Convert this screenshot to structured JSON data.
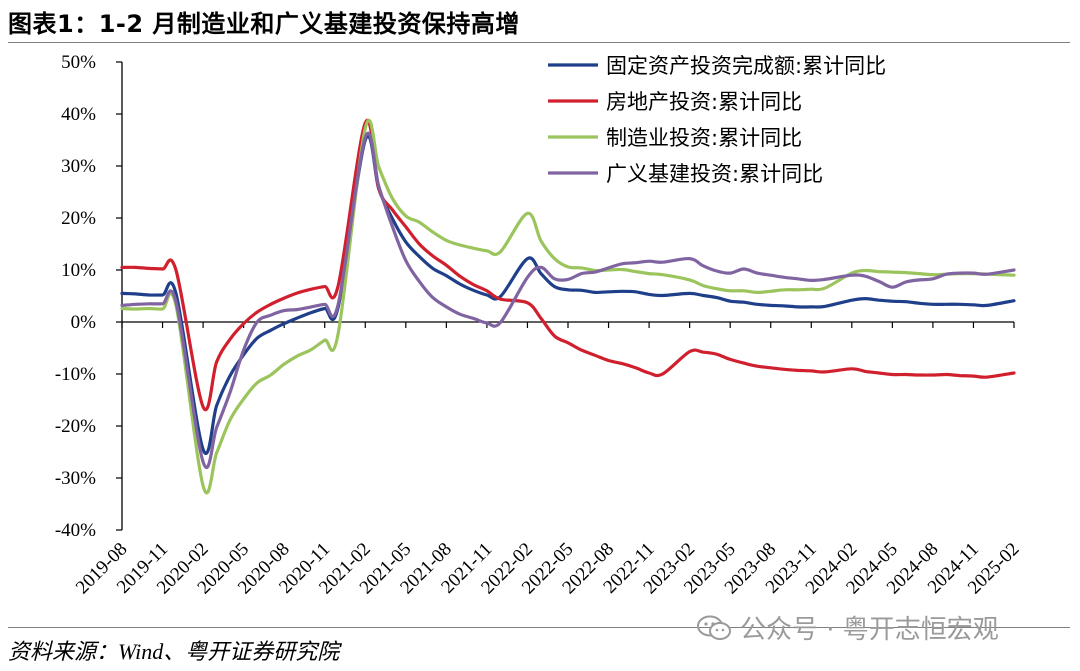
{
  "header": {
    "title": "图表1：1-2 月制造业和广义基建投资保持高增"
  },
  "footer": {
    "source": "资料来源：Wind、粤开证券研究院",
    "watermark": "公众号 · 粤开志恒宏观"
  },
  "colors": {
    "fixed": "#1f3f8a",
    "realestate": "#d0202e",
    "manufacturing": "#9bc45c",
    "infra": "#8064a2"
  },
  "icons": {
    "watermark": "wechat-icon"
  },
  "chart_data": {
    "type": "line",
    "title": "图表1：1-2 月制造业和广义基建投资保持高增",
    "ylim": [
      -40,
      50
    ],
    "yticks": [
      -40,
      -30,
      -20,
      -10,
      0,
      10,
      20,
      30,
      40,
      50
    ],
    "ytick_labels": [
      "-40%",
      "-30%",
      "-20%",
      "-10%",
      "0%",
      "10%",
      "20%",
      "30%",
      "40%",
      "50%"
    ],
    "x_start": "2019-08",
    "x_end": "2025-02",
    "xtick_labels": [
      "2019-08",
      "2019-11",
      "2020-02",
      "2020-05",
      "2020-08",
      "2020-11",
      "2021-02",
      "2021-05",
      "2021-08",
      "2021-11",
      "2022-02",
      "2022-05",
      "2022-08",
      "2022-11",
      "2023-02",
      "2023-05",
      "2023-08",
      "2023-11",
      "2024-02",
      "2024-05",
      "2024-08",
      "2024-11",
      "2025-02"
    ],
    "legend_position": "top-right",
    "grid": false,
    "series": [
      {
        "name": "固定资产投资完成额:累计同比",
        "color": "#1f3f8a",
        "x": [
          "2019-08",
          "2019-09",
          "2019-10",
          "2019-11",
          "2019-12",
          "2020-02",
          "2020-03",
          "2020-04",
          "2020-05",
          "2020-06",
          "2020-07",
          "2020-08",
          "2020-09",
          "2020-10",
          "2020-11",
          "2020-12",
          "2021-02",
          "2021-03",
          "2021-04",
          "2021-05",
          "2021-06",
          "2021-07",
          "2021-08",
          "2021-09",
          "2021-10",
          "2021-11",
          "2021-12",
          "2022-02",
          "2022-03",
          "2022-04",
          "2022-05",
          "2022-06",
          "2022-07",
          "2022-08",
          "2022-09",
          "2022-10",
          "2022-11",
          "2022-12",
          "2023-02",
          "2023-03",
          "2023-04",
          "2023-05",
          "2023-06",
          "2023-07",
          "2023-08",
          "2023-09",
          "2023-10",
          "2023-11",
          "2023-12",
          "2024-02",
          "2024-03",
          "2024-04",
          "2024-05",
          "2024-06",
          "2024-07",
          "2024-08",
          "2024-09",
          "2024-10",
          "2024-11",
          "2024-12",
          "2025-02"
        ],
        "y": [
          5.5,
          5.4,
          5.2,
          5.2,
          5.4,
          -24.5,
          -16.1,
          -10.3,
          -6.3,
          -3.1,
          -1.6,
          -0.3,
          0.8,
          1.8,
          2.6,
          2.9,
          35.0,
          25.6,
          19.9,
          15.4,
          12.6,
          10.3,
          8.9,
          7.3,
          6.1,
          5.2,
          4.9,
          12.2,
          9.3,
          6.8,
          6.2,
          6.1,
          5.7,
          5.8,
          5.9,
          5.8,
          5.3,
          5.1,
          5.5,
          5.1,
          4.7,
          4.0,
          3.8,
          3.4,
          3.2,
          3.1,
          2.9,
          2.9,
          3.0,
          4.2,
          4.5,
          4.2,
          4.0,
          3.9,
          3.6,
          3.4,
          3.4,
          3.4,
          3.3,
          3.2,
          4.1
        ]
      },
      {
        "name": "房地产投资:累计同比",
        "color": "#d0202e",
        "x": [
          "2019-08",
          "2019-09",
          "2019-10",
          "2019-11",
          "2019-12",
          "2020-02",
          "2020-03",
          "2020-04",
          "2020-05",
          "2020-06",
          "2020-07",
          "2020-08",
          "2020-09",
          "2020-10",
          "2020-11",
          "2020-12",
          "2021-02",
          "2021-03",
          "2021-04",
          "2021-05",
          "2021-06",
          "2021-07",
          "2021-08",
          "2021-09",
          "2021-10",
          "2021-11",
          "2021-12",
          "2022-02",
          "2022-03",
          "2022-04",
          "2022-05",
          "2022-06",
          "2022-07",
          "2022-08",
          "2022-09",
          "2022-10",
          "2022-11",
          "2022-12",
          "2023-02",
          "2023-03",
          "2023-04",
          "2023-05",
          "2023-06",
          "2023-07",
          "2023-08",
          "2023-09",
          "2023-10",
          "2023-11",
          "2023-12",
          "2024-02",
          "2024-03",
          "2024-04",
          "2024-05",
          "2024-06",
          "2024-07",
          "2024-08",
          "2024-09",
          "2024-10",
          "2024-11",
          "2024-12",
          "2025-02"
        ],
        "y": [
          10.5,
          10.5,
          10.3,
          10.2,
          9.9,
          -16.3,
          -7.7,
          -3.3,
          -0.3,
          1.9,
          3.4,
          4.6,
          5.6,
          6.3,
          6.8,
          7.0,
          38.3,
          25.6,
          21.6,
          18.3,
          15.0,
          12.7,
          10.9,
          8.8,
          7.2,
          6.0,
          4.4,
          3.7,
          0.7,
          -2.7,
          -4.0,
          -5.4,
          -6.4,
          -7.4,
          -8.0,
          -8.8,
          -9.8,
          -10.0,
          -5.7,
          -5.8,
          -6.2,
          -7.2,
          -7.9,
          -8.5,
          -8.8,
          -9.1,
          -9.3,
          -9.4,
          -9.6,
          -9.0,
          -9.5,
          -9.8,
          -10.1,
          -10.1,
          -10.2,
          -10.2,
          -10.1,
          -10.3,
          -10.4,
          -10.6,
          -9.8
        ]
      },
      {
        "name": "制造业投资:累计同比",
        "color": "#9bc45c",
        "x": [
          "2019-08",
          "2019-09",
          "2019-10",
          "2019-11",
          "2019-12",
          "2020-02",
          "2020-03",
          "2020-04",
          "2020-05",
          "2020-06",
          "2020-07",
          "2020-08",
          "2020-09",
          "2020-10",
          "2020-11",
          "2020-12",
          "2021-02",
          "2021-03",
          "2021-04",
          "2021-05",
          "2021-06",
          "2021-07",
          "2021-08",
          "2021-09",
          "2021-10",
          "2021-11",
          "2021-12",
          "2022-02",
          "2022-03",
          "2022-04",
          "2022-05",
          "2022-06",
          "2022-07",
          "2022-08",
          "2022-09",
          "2022-10",
          "2022-11",
          "2022-12",
          "2023-02",
          "2023-03",
          "2023-04",
          "2023-05",
          "2023-06",
          "2023-07",
          "2023-08",
          "2023-09",
          "2023-10",
          "2023-11",
          "2023-12",
          "2024-02",
          "2024-03",
          "2024-04",
          "2024-05",
          "2024-06",
          "2024-07",
          "2024-08",
          "2024-09",
          "2024-10",
          "2024-11",
          "2024-12",
          "2025-02"
        ],
        "y": [
          2.6,
          2.5,
          2.6,
          2.5,
          3.1,
          -31.5,
          -25.2,
          -18.8,
          -14.8,
          -11.7,
          -10.2,
          -8.1,
          -6.5,
          -5.3,
          -3.5,
          -2.2,
          37.3,
          29.8,
          23.8,
          20.4,
          19.2,
          17.3,
          15.7,
          14.8,
          14.2,
          13.7,
          13.5,
          20.9,
          15.6,
          12.2,
          10.6,
          10.4,
          9.9,
          10.0,
          10.1,
          9.7,
          9.3,
          9.1,
          8.1,
          7.0,
          6.4,
          6.0,
          6.0,
          5.7,
          5.9,
          6.2,
          6.2,
          6.3,
          6.5,
          9.4,
          9.9,
          9.7,
          9.6,
          9.5,
          9.3,
          9.1,
          9.2,
          9.3,
          9.3,
          9.2,
          9.0
        ]
      },
      {
        "name": "广义基建投资:累计同比",
        "color": "#8064a2",
        "x": [
          "2019-08",
          "2019-09",
          "2019-10",
          "2019-11",
          "2019-12",
          "2020-02",
          "2020-03",
          "2020-04",
          "2020-05",
          "2020-06",
          "2020-07",
          "2020-08",
          "2020-09",
          "2020-10",
          "2020-11",
          "2020-12",
          "2021-02",
          "2021-03",
          "2021-04",
          "2021-05",
          "2021-06",
          "2021-07",
          "2021-08",
          "2021-09",
          "2021-10",
          "2021-11",
          "2021-12",
          "2022-02",
          "2022-03",
          "2022-04",
          "2022-05",
          "2022-06",
          "2022-07",
          "2022-08",
          "2022-09",
          "2022-10",
          "2022-11",
          "2022-12",
          "2023-02",
          "2023-03",
          "2023-04",
          "2023-05",
          "2023-06",
          "2023-07",
          "2023-08",
          "2023-09",
          "2023-10",
          "2023-11",
          "2023-12",
          "2024-02",
          "2024-03",
          "2024-04",
          "2024-05",
          "2024-06",
          "2024-07",
          "2024-08",
          "2024-09",
          "2024-10",
          "2024-11",
          "2024-12",
          "2025-02"
        ],
        "y": [
          3.2,
          3.4,
          3.5,
          3.5,
          3.8,
          -26.9,
          -20.3,
          -13.5,
          -5.4,
          0.0,
          1.3,
          2.2,
          2.4,
          2.9,
          3.4,
          3.4,
          35.5,
          26.1,
          18.4,
          11.8,
          7.8,
          4.7,
          2.9,
          1.5,
          0.7,
          -0.2,
          -0.1,
          8.6,
          10.5,
          8.3,
          8.2,
          9.3,
          9.6,
          10.4,
          11.2,
          11.4,
          11.7,
          11.5,
          12.2,
          10.8,
          9.8,
          9.4,
          10.2,
          9.4,
          9.0,
          8.6,
          8.3,
          8.0,
          8.2,
          9.0,
          8.8,
          7.8,
          6.7,
          7.7,
          8.1,
          8.3,
          9.2,
          9.4,
          9.4,
          9.2,
          10.0
        ]
      }
    ]
  }
}
